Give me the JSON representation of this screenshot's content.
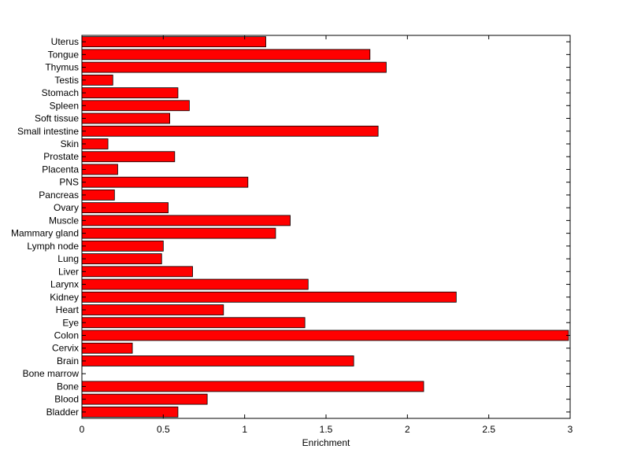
{
  "chart_data": {
    "type": "bar",
    "orientation": "horizontal",
    "title": "",
    "xlabel": "Enrichment",
    "ylabel": "",
    "xlim": [
      0,
      3
    ],
    "xticks": [
      "0",
      "0.5",
      "1",
      "1.5",
      "2",
      "2.5",
      "3"
    ],
    "grid": false,
    "legend": "none",
    "bar_color": "#ff0000",
    "categories": [
      "Uterus",
      "Tongue",
      "Thymus",
      "Testis",
      "Stomach",
      "Spleen",
      "Soft tissue",
      "Small intestine",
      "Skin",
      "Prostate",
      "Placenta",
      "PNS",
      "Pancreas",
      "Ovary",
      "Muscle",
      "Mammary gland",
      "Lymph node",
      "Lung",
      "Liver",
      "Larynx",
      "Kidney",
      "Heart",
      "Eye",
      "Colon",
      "Cervix",
      "Brain",
      "Bone marrow",
      "Bone",
      "Blood",
      "Bladder"
    ],
    "values": [
      1.13,
      1.77,
      1.87,
      0.19,
      0.59,
      0.66,
      0.54,
      1.82,
      0.16,
      0.57,
      0.22,
      1.02,
      0.2,
      0.53,
      1.28,
      1.19,
      0.5,
      0.49,
      0.68,
      1.39,
      2.3,
      0.87,
      1.37,
      2.99,
      0.31,
      1.67,
      0.0,
      2.1,
      0.77,
      0.59
    ]
  }
}
